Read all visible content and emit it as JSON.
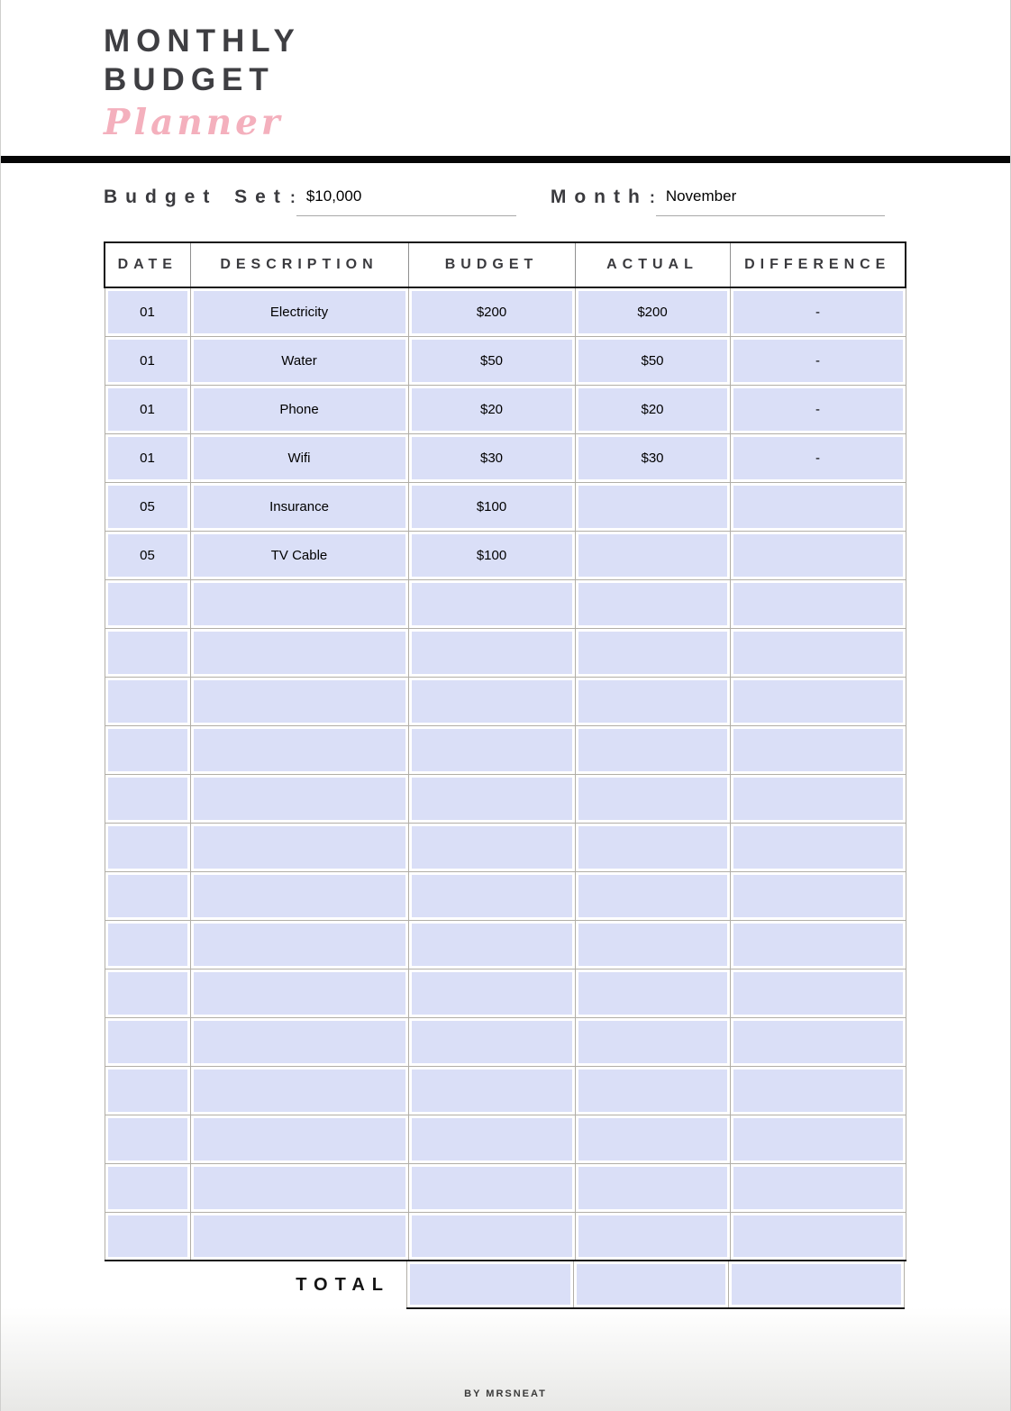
{
  "brand": {
    "title_line1": "MONTHLY",
    "title_line2": "BUDGET",
    "title_script": "Planner"
  },
  "controls": {
    "budget_set_label": "Budget Set",
    "budget_set_colon": ":",
    "budget_set_value": "$10,000",
    "month_label": "Month",
    "month_colon": ":",
    "month_value": "November"
  },
  "table": {
    "headers": [
      "DATE",
      "DESCRIPTION",
      "BUDGET",
      "ACTUAL",
      "DIFFERENCE"
    ],
    "rows": [
      {
        "date": "01",
        "description": "Electricity",
        "budget": "$200",
        "actual": "$200",
        "difference": "-"
      },
      {
        "date": "01",
        "description": "Water",
        "budget": "$50",
        "actual": "$50",
        "difference": "-"
      },
      {
        "date": "01",
        "description": "Phone",
        "budget": "$20",
        "actual": "$20",
        "difference": "-"
      },
      {
        "date": "01",
        "description": "Wifi",
        "budget": "$30",
        "actual": "$30",
        "difference": "-"
      },
      {
        "date": "05",
        "description": "Insurance",
        "budget": "$100",
        "actual": "",
        "difference": ""
      },
      {
        "date": "05",
        "description": "TV Cable",
        "budget": "$100",
        "actual": "",
        "difference": ""
      },
      {
        "date": "",
        "description": "",
        "budget": "",
        "actual": "",
        "difference": ""
      },
      {
        "date": "",
        "description": "",
        "budget": "",
        "actual": "",
        "difference": ""
      },
      {
        "date": "",
        "description": "",
        "budget": "",
        "actual": "",
        "difference": ""
      },
      {
        "date": "",
        "description": "",
        "budget": "",
        "actual": "",
        "difference": ""
      },
      {
        "date": "",
        "description": "",
        "budget": "",
        "actual": "",
        "difference": ""
      },
      {
        "date": "",
        "description": "",
        "budget": "",
        "actual": "",
        "difference": ""
      },
      {
        "date": "",
        "description": "",
        "budget": "",
        "actual": "",
        "difference": ""
      },
      {
        "date": "",
        "description": "",
        "budget": "",
        "actual": "",
        "difference": ""
      },
      {
        "date": "",
        "description": "",
        "budget": "",
        "actual": "",
        "difference": ""
      },
      {
        "date": "",
        "description": "",
        "budget": "",
        "actual": "",
        "difference": ""
      },
      {
        "date": "",
        "description": "",
        "budget": "",
        "actual": "",
        "difference": ""
      },
      {
        "date": "",
        "description": "",
        "budget": "",
        "actual": "",
        "difference": ""
      },
      {
        "date": "",
        "description": "",
        "budget": "",
        "actual": "",
        "difference": ""
      },
      {
        "date": "",
        "description": "",
        "budget": "",
        "actual": "",
        "difference": ""
      }
    ],
    "total_label": "TOTAL",
    "totals": {
      "budget": "",
      "actual": "",
      "difference": ""
    }
  },
  "footer": {
    "credit": "BY MRSNEAT"
  },
  "colors": {
    "accent_pink": "#f4b0bd",
    "title_charcoal": "#3e3e42",
    "cell_lavender": "#dadff7",
    "gridline_gray": "#b1aea7",
    "line_black": "#141414"
  }
}
